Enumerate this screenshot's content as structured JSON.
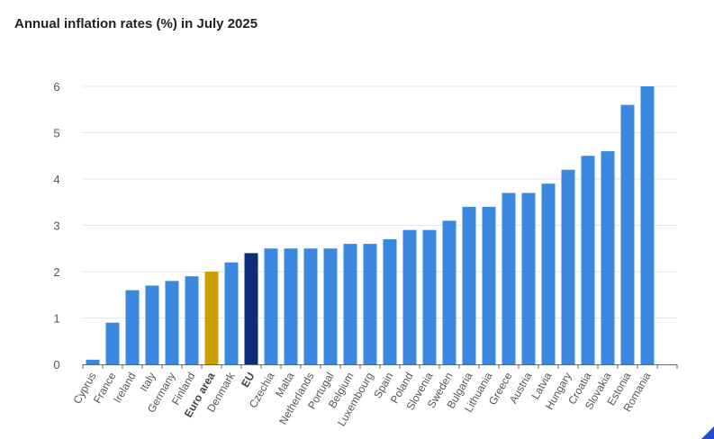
{
  "title": "Annual inflation rates (%) in July 2025",
  "colors": {
    "default": "#3b88e0",
    "euro_area": "#c9a000",
    "eu": "#0d2b78",
    "grid": "#e3e6ea",
    "axis": "#666666",
    "tick_label": "#555555",
    "corner": "#1a4fd1"
  },
  "chart_data": {
    "type": "bar",
    "title": "Annual inflation rates (%) in July 2025",
    "xlabel": "",
    "ylabel": "",
    "ylim": [
      0,
      6
    ],
    "yticks": [
      "0",
      "1",
      "2",
      "3",
      "4",
      "5",
      "6"
    ],
    "grid": true,
    "legend": "none",
    "categories": [
      "Cyprus",
      "France",
      "Ireland",
      "Italy",
      "Germany",
      "Finland",
      "Euro area",
      "Denmark",
      "EU",
      "Czechia",
      "Malta",
      "Netherlands",
      "Portugal",
      "Belgium",
      "Luxembourg",
      "Spain",
      "Poland",
      "Slovenia",
      "Sweden",
      "Bulgaria",
      "Lithuania",
      "Greece",
      "Austria",
      "Latvia",
      "Hungary",
      "Croatia",
      "Slovakia",
      "Estonia",
      "Romania"
    ],
    "values": [
      0.1,
      0.9,
      1.6,
      1.7,
      1.8,
      1.9,
      2.0,
      2.2,
      2.4,
      2.5,
      2.5,
      2.5,
      2.5,
      2.6,
      2.6,
      2.7,
      2.9,
      2.9,
      3.1,
      3.4,
      3.4,
      3.7,
      3.7,
      3.9,
      4.2,
      4.5,
      4.6,
      5.6,
      6.0
    ],
    "highlight": {
      "Euro area": "euro_area",
      "EU": "eu"
    },
    "bold_labels": [
      "Euro area",
      "EU"
    ]
  }
}
